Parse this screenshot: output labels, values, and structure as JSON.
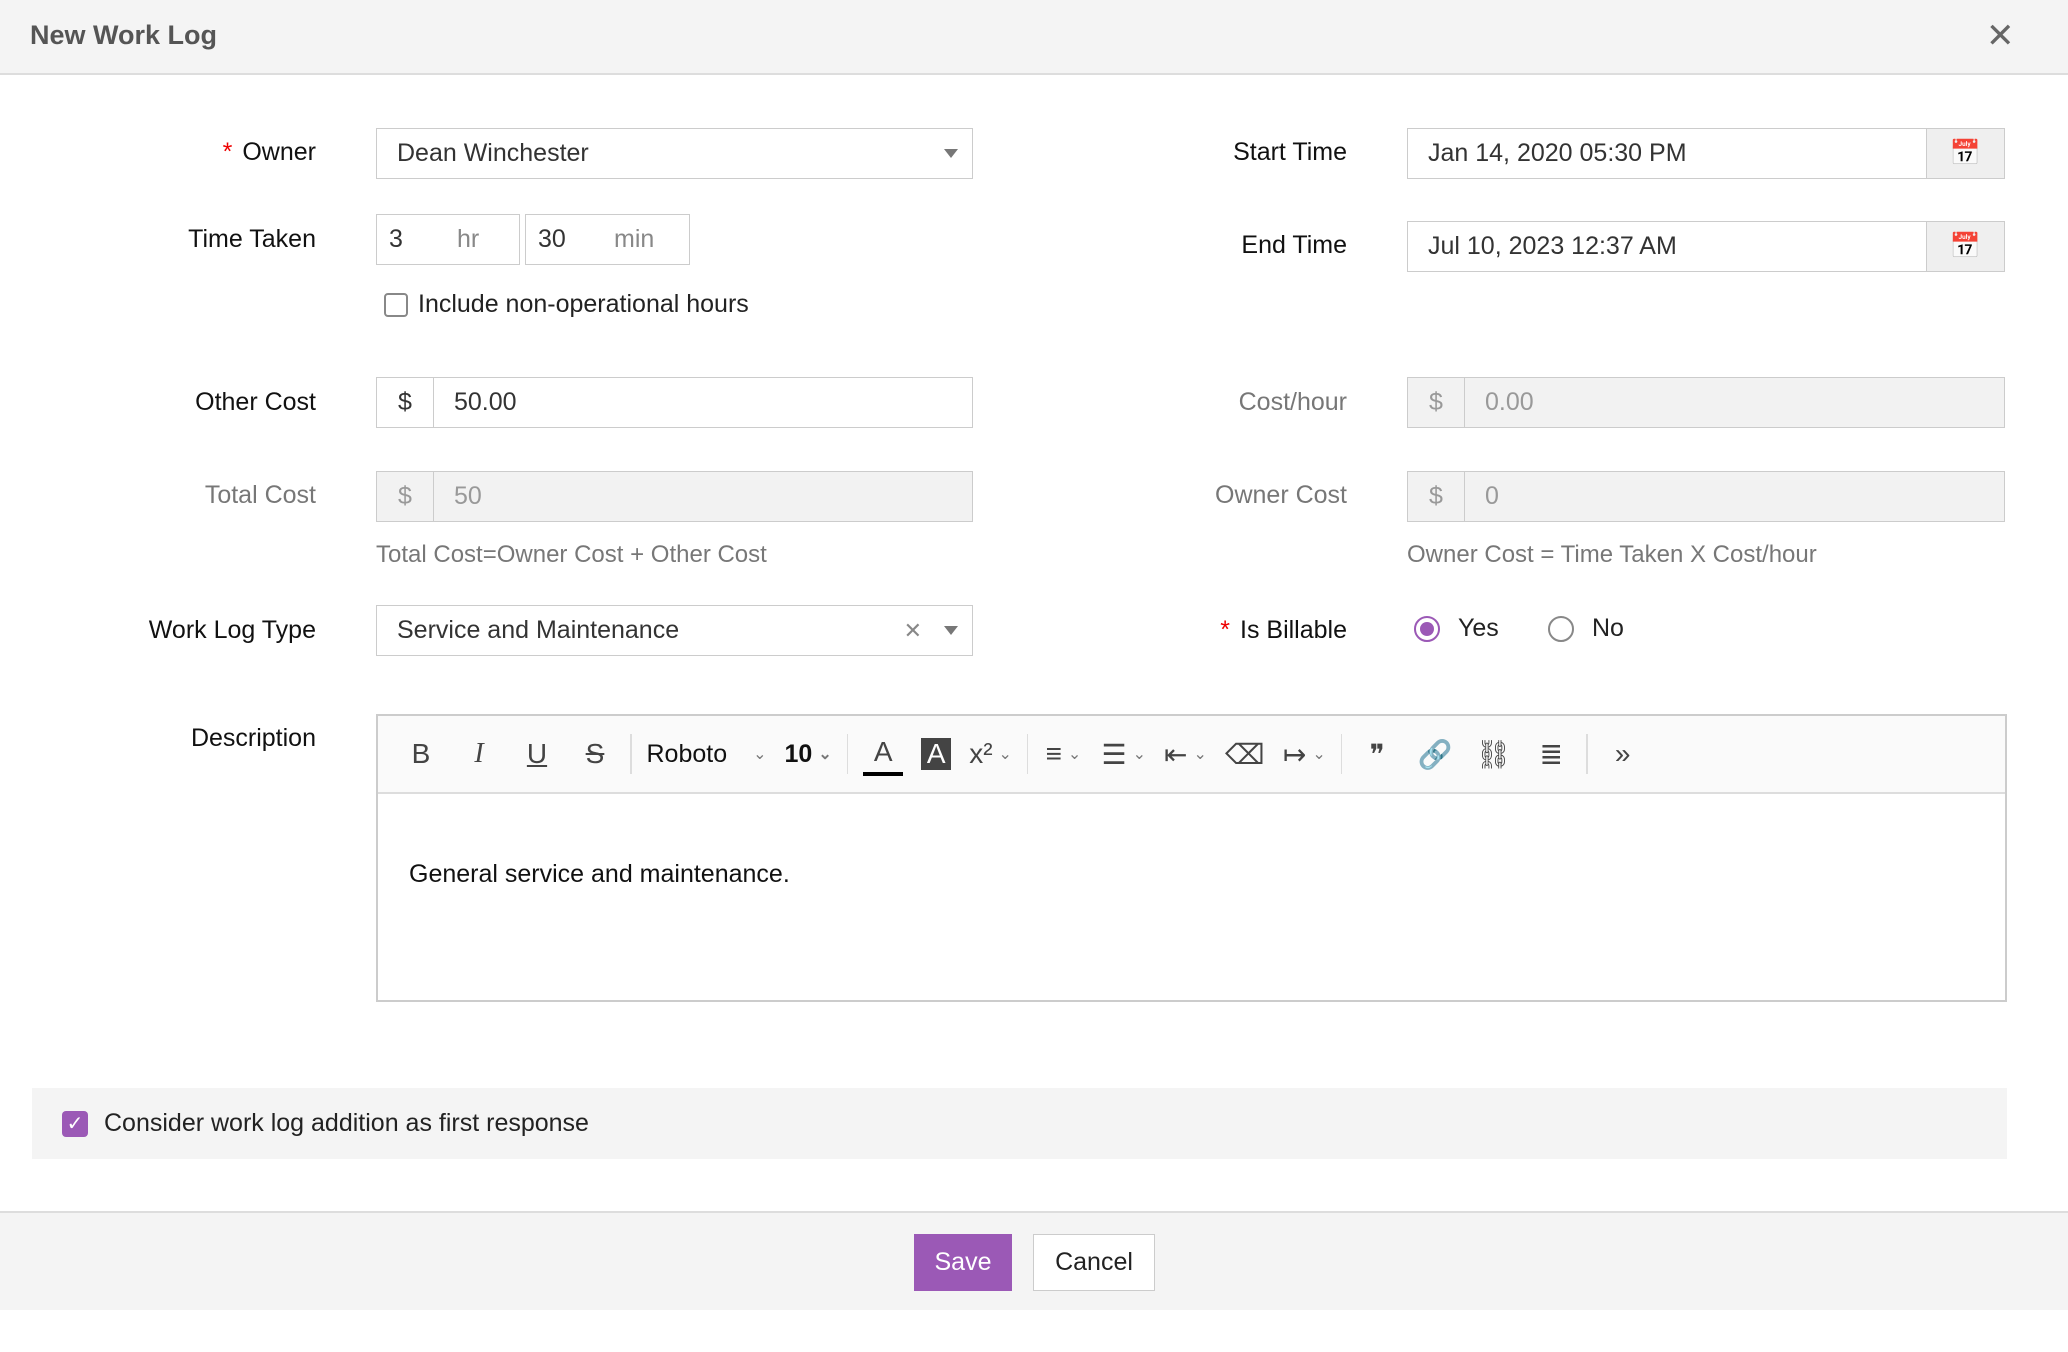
{
  "dialog": {
    "title": "New Work Log"
  },
  "form": {
    "owner": {
      "label": "Owner",
      "value": "Dean Winchester"
    },
    "start_time": {
      "label": "Start Time",
      "value": "Jan 14, 2020 05:30 PM"
    },
    "end_time": {
      "label": "End Time",
      "value": "Jul 10, 2023 12:37 AM"
    },
    "time_taken": {
      "label": "Time Taken",
      "hours": "3",
      "hr_unit": "hr",
      "minutes": "30",
      "min_unit": "min"
    },
    "non_operational": {
      "label": "Include non-operational hours",
      "checked": false
    },
    "other_cost": {
      "label": "Other Cost",
      "currency": "$",
      "value": "50.00"
    },
    "cost_hour": {
      "label": "Cost/hour",
      "currency": "$",
      "value": "0.00"
    },
    "total_cost": {
      "label": "Total Cost",
      "currency": "$",
      "value": "50",
      "help": "Total Cost=Owner Cost + Other Cost"
    },
    "owner_cost": {
      "label": "Owner Cost",
      "currency": "$",
      "value": "0",
      "help": "Owner Cost = Time Taken X Cost/hour"
    },
    "work_log_type": {
      "label": "Work Log Type",
      "value": "Service and Maintenance"
    },
    "is_billable": {
      "label": "Is Billable",
      "options": [
        "Yes",
        "No"
      ],
      "selected": "Yes"
    },
    "description": {
      "label": "Description",
      "font": "Roboto",
      "size": "10",
      "text": "General service and maintenance."
    },
    "first_response": {
      "label": "Consider work log addition as first response",
      "checked": true
    }
  },
  "footer": {
    "save": "Save",
    "cancel": "Cancel"
  },
  "colors": {
    "accent": "#9b59b6",
    "required": "#e00000"
  }
}
